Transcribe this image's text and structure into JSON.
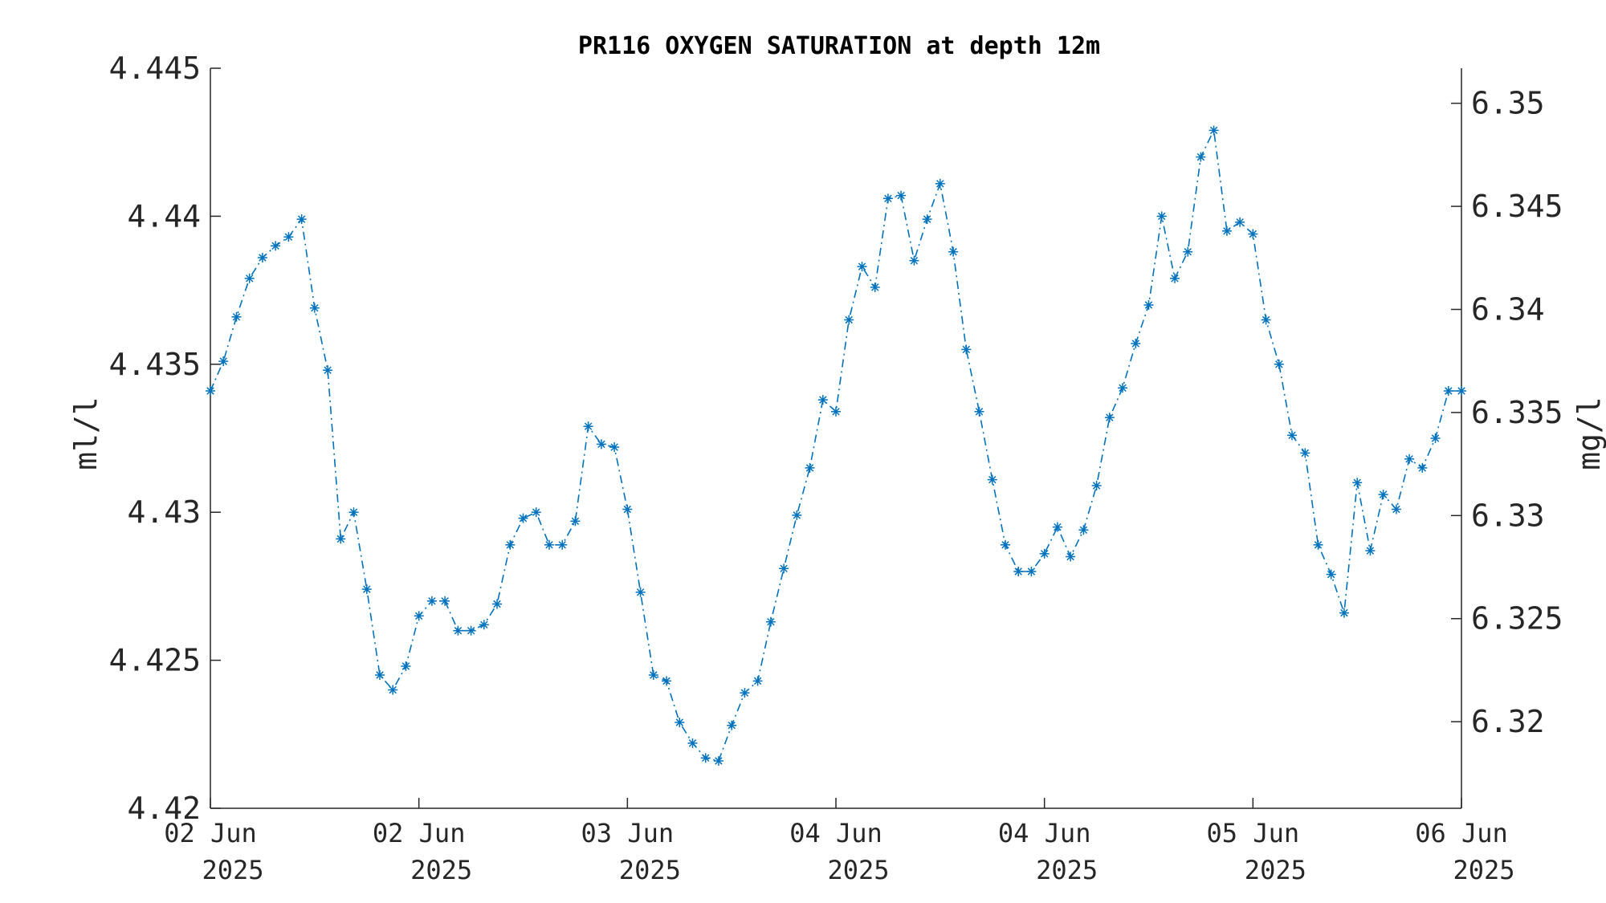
{
  "chart_data": {
    "type": "line",
    "title": "PR116 OXYGEN SATURATION at depth 12m",
    "ylabel_left": "ml/l",
    "ylabel_right": "mg/l",
    "ylim_left": [
      4.42,
      4.445
    ],
    "yticks_left": [
      "4.42",
      "4.425",
      "4.43",
      "4.435",
      "4.44",
      "4.445"
    ],
    "ylim_right": [
      6.3158,
      6.3517
    ],
    "yticks_right": [
      "6.32",
      "6.325",
      "6.33",
      "6.335",
      "6.34",
      "6.345",
      "6.35"
    ],
    "xlim_hours": [
      0,
      96
    ],
    "xticks": [
      {
        "hour": 0,
        "line1": "02 Jun",
        "line2": "2025"
      },
      {
        "hour": 16,
        "line1": "02 Jun",
        "line2": "2025"
      },
      {
        "hour": 32,
        "line1": "03 Jun",
        "line2": "2025"
      },
      {
        "hour": 48,
        "line1": "04 Jun",
        "line2": "2025"
      },
      {
        "hour": 64,
        "line1": "04 Jun",
        "line2": "2025"
      },
      {
        "hour": 80,
        "line1": "05 Jun",
        "line2": "2025"
      },
      {
        "hour": 96,
        "line1": "06 Jun",
        "line2": "2025"
      }
    ],
    "grid": false,
    "series": [
      {
        "color": "#0072BD",
        "line_style": "dash-dot",
        "marker": "asterisk",
        "x": [
          0,
          1,
          2,
          3,
          4,
          5,
          6,
          7,
          8,
          9,
          10,
          11,
          12,
          13,
          14,
          15,
          16,
          17,
          18,
          19,
          20,
          21,
          22,
          23,
          24,
          25,
          26,
          27,
          28,
          29,
          30,
          31,
          32,
          33,
          34,
          35,
          36,
          37,
          38,
          39,
          40,
          41,
          42,
          43,
          44,
          45,
          46,
          47,
          48,
          49,
          50,
          51,
          52,
          53,
          54,
          55,
          56,
          57,
          58,
          59,
          60,
          61,
          62,
          63,
          64,
          65,
          66,
          67,
          68,
          69,
          70,
          71,
          72,
          73,
          74,
          75,
          76,
          77,
          78,
          79,
          80,
          81,
          82,
          83,
          84,
          85,
          86,
          87,
          88,
          89,
          90,
          91,
          92,
          93,
          94,
          95,
          96
        ],
        "values": [
          4.4341,
          4.4351,
          4.4366,
          4.4379,
          4.4386,
          4.439,
          4.4393,
          4.4399,
          4.4369,
          4.4348,
          4.4291,
          4.43,
          4.4274,
          4.4245,
          4.424,
          4.4248,
          4.4265,
          4.427,
          4.427,
          4.426,
          4.426,
          4.4262,
          4.4269,
          4.4289,
          4.4298,
          4.43,
          4.4289,
          4.4289,
          4.4297,
          4.4329,
          4.4323,
          4.4322,
          4.4301,
          4.4273,
          4.4245,
          4.4243,
          4.4229,
          4.4222,
          4.4217,
          4.4216,
          4.4228,
          4.4239,
          4.4243,
          4.4263,
          4.4281,
          4.4299,
          4.4315,
          4.4338,
          4.4334,
          4.4365,
          4.4383,
          4.4376,
          4.4406,
          4.4407,
          4.4385,
          4.4399,
          4.4411,
          4.4388,
          4.4355,
          4.4334,
          4.4311,
          4.4289,
          4.428,
          4.428,
          4.4286,
          4.4295,
          4.4285,
          4.4294,
          4.4309,
          4.4332,
          4.4342,
          4.4357,
          4.437,
          4.44,
          4.4379,
          4.4388,
          4.442,
          4.4429,
          4.4395,
          4.4398,
          4.4394,
          4.4365,
          4.435,
          4.4326,
          4.432,
          4.4289,
          4.4279,
          4.4266,
          4.431,
          4.4287,
          4.4306,
          4.4301,
          4.4318,
          4.4315,
          4.4325,
          4.4341,
          4.4341
        ]
      }
    ]
  }
}
